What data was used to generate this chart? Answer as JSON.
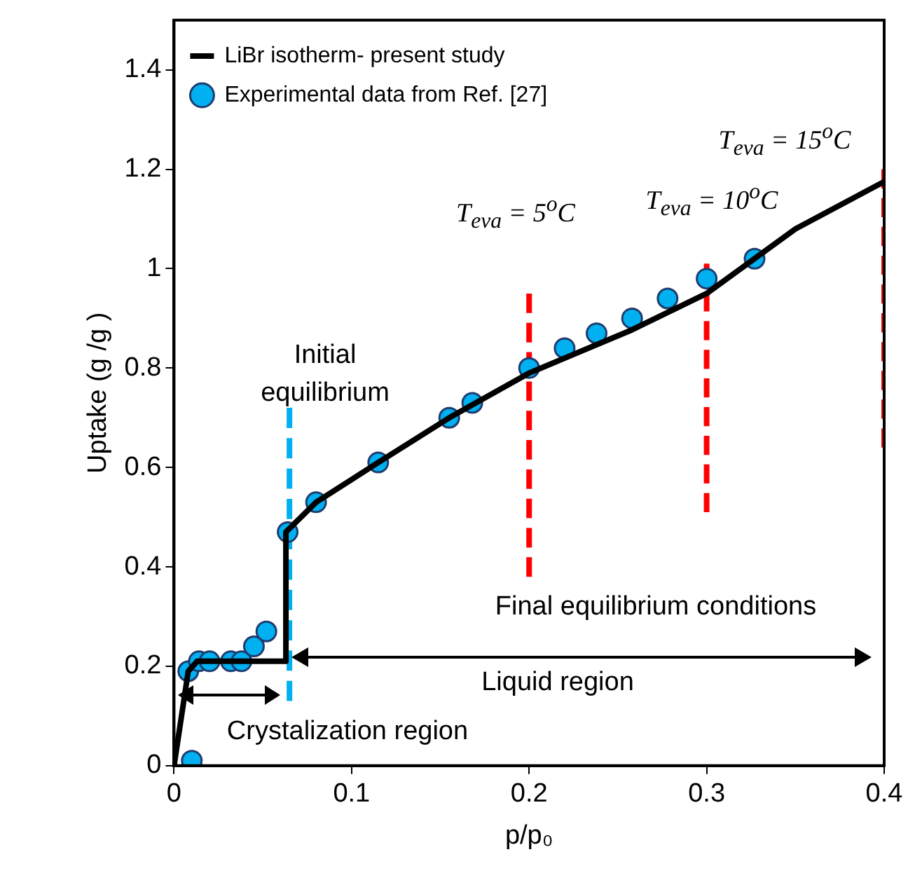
{
  "chart_data": {
    "type": "line",
    "xlabel": "p/p₀",
    "ylabel": "Uptake (g /g )",
    "xlim": [
      0,
      0.4
    ],
    "ylim": [
      0,
      1.5
    ],
    "xticks": [
      0,
      0.1,
      0.2,
      0.3,
      0.4
    ],
    "yticks": [
      0,
      0.2,
      0.4,
      0.6,
      0.8,
      1,
      1.2,
      1.4
    ],
    "grid": false,
    "legend": "top left",
    "annotations": [
      "T$_{eva}$ = 5$^{o}$C",
      "T$_{eva}$ = 10$^{o}$C",
      "T$_{eva}$ = 15$^{o}$C",
      "Initial equilibrium",
      "Final equilibrium conditions",
      "Liquid region",
      "Crystalization region"
    ],
    "series": [
      {
        "name": "LiBr isotherm- present study",
        "color": "#000000",
        "line_style": "solid",
        "marker": "none",
        "x": [
          0,
          0.008,
          0.013,
          0.063,
          0.063,
          0.08,
          0.115,
          0.155,
          0.2,
          0.258,
          0.3,
          0.35,
          0.4
        ],
        "values": [
          0,
          0.19,
          0.21,
          0.21,
          0.47,
          0.53,
          0.61,
          0.7,
          0.79,
          0.877,
          0.95,
          1.08,
          1.175
        ]
      },
      {
        "name": "Experimental data from Ref. [27]",
        "type": "scatter",
        "color": "#00b0f0",
        "marker": "circle",
        "x": [
          0.01,
          0.008,
          0.014,
          0.02,
          0.032,
          0.038,
          0.045,
          0.052,
          0.064,
          0.08,
          0.115,
          0.155,
          0.168,
          0.2,
          0.22,
          0.238,
          0.258,
          0.278,
          0.3,
          0.327
        ],
        "values": [
          0.01,
          0.19,
          0.21,
          0.21,
          0.21,
          0.21,
          0.24,
          0.27,
          0.47,
          0.53,
          0.61,
          0.7,
          0.73,
          0.8,
          0.84,
          0.87,
          0.9,
          0.94,
          0.98,
          1.02
        ]
      },
      {
        "type": "line",
        "color": "#00b0f0",
        "line_style": "dashed",
        "marker": "none",
        "x": [
          0.065,
          0.065
        ],
        "values": [
          0.13,
          0.72
        ]
      },
      {
        "type": "line",
        "color": "#ff0000",
        "line_style": "dashed",
        "marker": "none",
        "x": [
          0.2,
          0.2
        ],
        "values": [
          0.38,
          0.95
        ]
      },
      {
        "type": "line",
        "color": "#ff0000",
        "line_style": "dashed",
        "marker": "none",
        "x": [
          0.3,
          0.3
        ],
        "values": [
          0.51,
          1.01
        ]
      },
      {
        "type": "line",
        "color": "#ff0000",
        "line_style": "dashed",
        "marker": "none",
        "x": [
          0.4,
          0.4
        ],
        "values": [
          0.64,
          1.2
        ]
      }
    ]
  }
}
